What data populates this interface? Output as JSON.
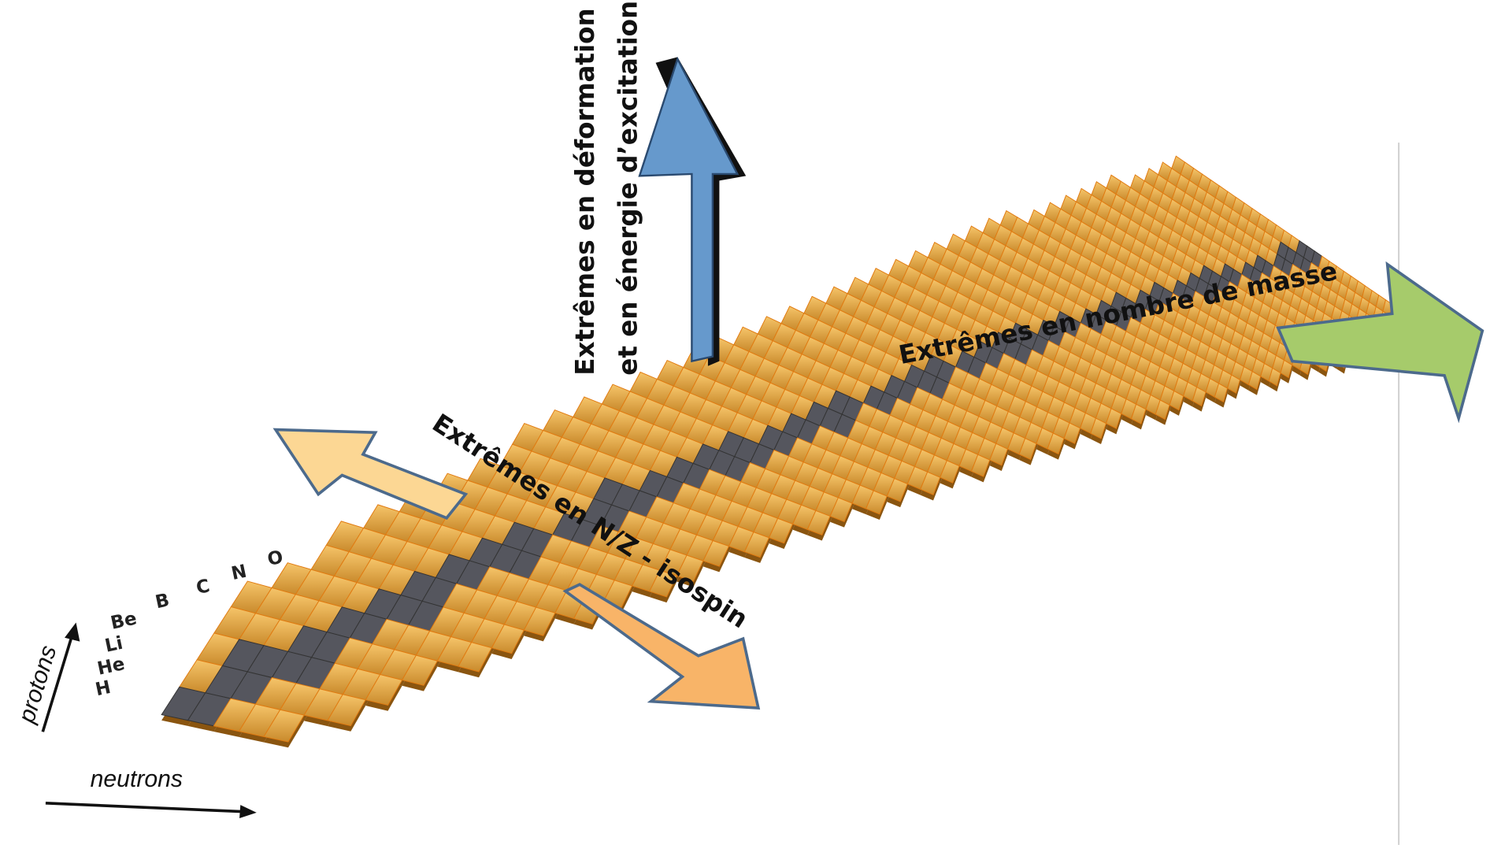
{
  "axes": {
    "protons": "protons",
    "neutrons": "neutrons"
  },
  "elements": [
    "H",
    "He",
    "Li",
    "Be",
    "B",
    "C",
    "N",
    "O"
  ],
  "arrows": {
    "deformation": [
      "Extrêmes en déformation",
      "et en énergie d’excitation"
    ],
    "isospin": "Extrêmes en N/Z - isospin",
    "mass": "Extrêmes en nombre de masse"
  }
}
